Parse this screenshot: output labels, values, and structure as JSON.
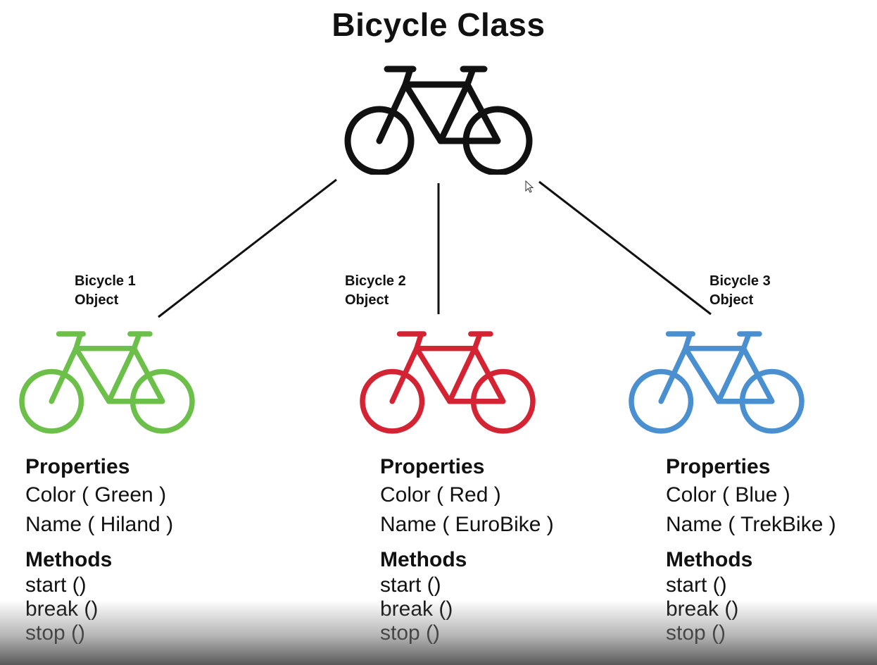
{
  "title": "Bicycle Class",
  "class_color": "#111111",
  "objects": [
    {
      "label_line1": "Bicycle 1",
      "label_line2": "Object",
      "color": "#6cc04a",
      "properties_heading": "Properties",
      "color_prop": "Color ( Green )",
      "name_prop": "Name ( Hiland )",
      "methods_heading": "Methods",
      "methods": [
        "start ()",
        "break ()",
        "stop ()"
      ]
    },
    {
      "label_line1": "Bicycle 2",
      "label_line2": "Object",
      "color": "#d42434",
      "properties_heading": "Properties",
      "color_prop": "Color ( Red )",
      "name_prop": "Name ( EuroBike )",
      "methods_heading": "Methods",
      "methods": [
        "start ()",
        "break ()",
        "stop ()"
      ]
    },
    {
      "label_line1": "Bicycle 3",
      "label_line2": "Object",
      "color": "#4a8fcf",
      "properties_heading": "Properties",
      "color_prop": "Color ( Blue )",
      "name_prop": "Name ( TrekBike )",
      "methods_heading": "Methods",
      "methods": [
        "start ()",
        "break ()",
        "stop ()"
      ]
    }
  ]
}
